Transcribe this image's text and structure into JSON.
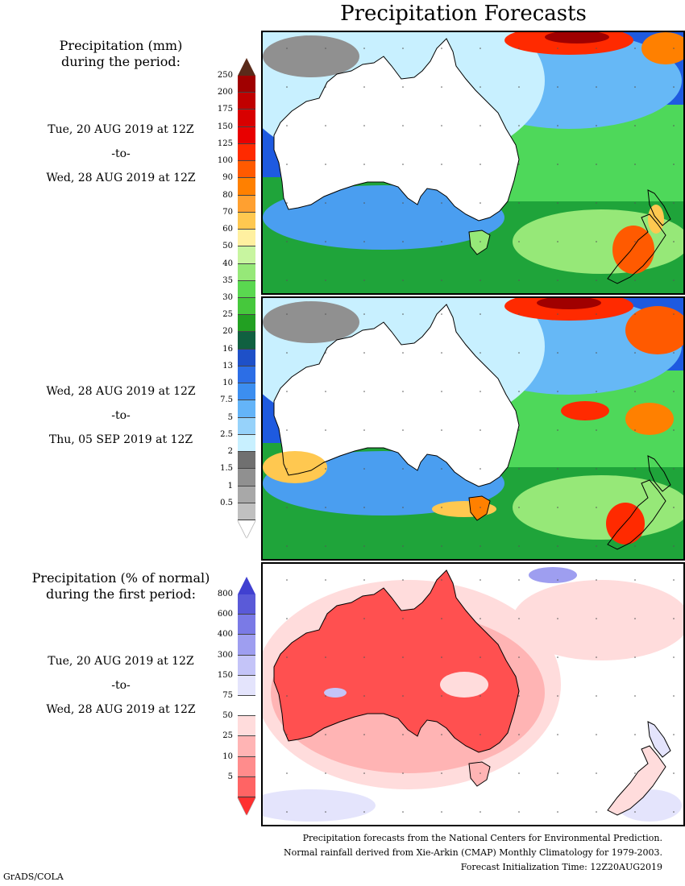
{
  "title": "Precipitation Forecasts",
  "panel1": {
    "heading": [
      "Precipitation (mm)",
      "during the period:"
    ],
    "start": "Tue, 20 AUG 2019 at 12Z",
    "sep": "-to-",
    "end": "Wed, 28 AUG 2019 at 12Z"
  },
  "panel2": {
    "start": "Wed, 28 AUG 2019 at 12Z",
    "sep": "-to-",
    "end": "Thu, 05 SEP 2019 at 12Z"
  },
  "panel3": {
    "heading": [
      "Precipitation (% of normal)",
      "during the first period:"
    ],
    "start": "Tue, 20 AUG 2019 at 12Z",
    "sep": "-to-",
    "end": "Wed, 28 AUG 2019 at 12Z"
  },
  "precip_scale": {
    "labels": [
      "250",
      "200",
      "175",
      "150",
      "125",
      "100",
      "90",
      "80",
      "70",
      "60",
      "50",
      "40",
      "35",
      "30",
      "25",
      "20",
      "16",
      "13",
      "10",
      "7.5",
      "5",
      "2.5",
      "2",
      "1.5",
      "1",
      "0.5"
    ],
    "colors": [
      "#a00000",
      "#c00000",
      "#d80000",
      "#e80000",
      "#ff2a00",
      "#ff5a00",
      "#ff8000",
      "#ffa030",
      "#ffc850",
      "#fff0a0",
      "#c8f5a0",
      "#96e878",
      "#5ad850",
      "#46c83c",
      "#22a022",
      "#106040",
      "#1e50c8",
      "#2c6ee6",
      "#3c8ef0",
      "#64b4f8",
      "#96d2fa",
      "#c8f0ff",
      "#707070",
      "#909090",
      "#a8a8a8",
      "#c0c0c0"
    ],
    "top_arrow": "#5a2a1a",
    "bottom_arrow": "#ffffff"
  },
  "pct_scale": {
    "labels": [
      "800",
      "600",
      "400",
      "300",
      "150",
      "75",
      "50",
      "25",
      "10",
      "5"
    ],
    "colors": [
      "#5a5ad8",
      "#7a7ae6",
      "#9e9ef0",
      "#c4c4f8",
      "#e4e4fc",
      "#ffffff",
      "#ffdcdc",
      "#ffb4b4",
      "#ff8c8c",
      "#ff6464"
    ],
    "top_arrow": "#4040d0",
    "bottom_arrow": "#ff3030"
  },
  "footer": [
    "Precipitation forecasts from the National Centers for Environmental Prediction.",
    "Normal rainfall derived from Xie-Arkin (CMAP) Monthly Climatology for 1979-2003.",
    "Forecast Initialization Time: 12Z20AUG2019"
  ],
  "credit": "GrADS/COLA"
}
